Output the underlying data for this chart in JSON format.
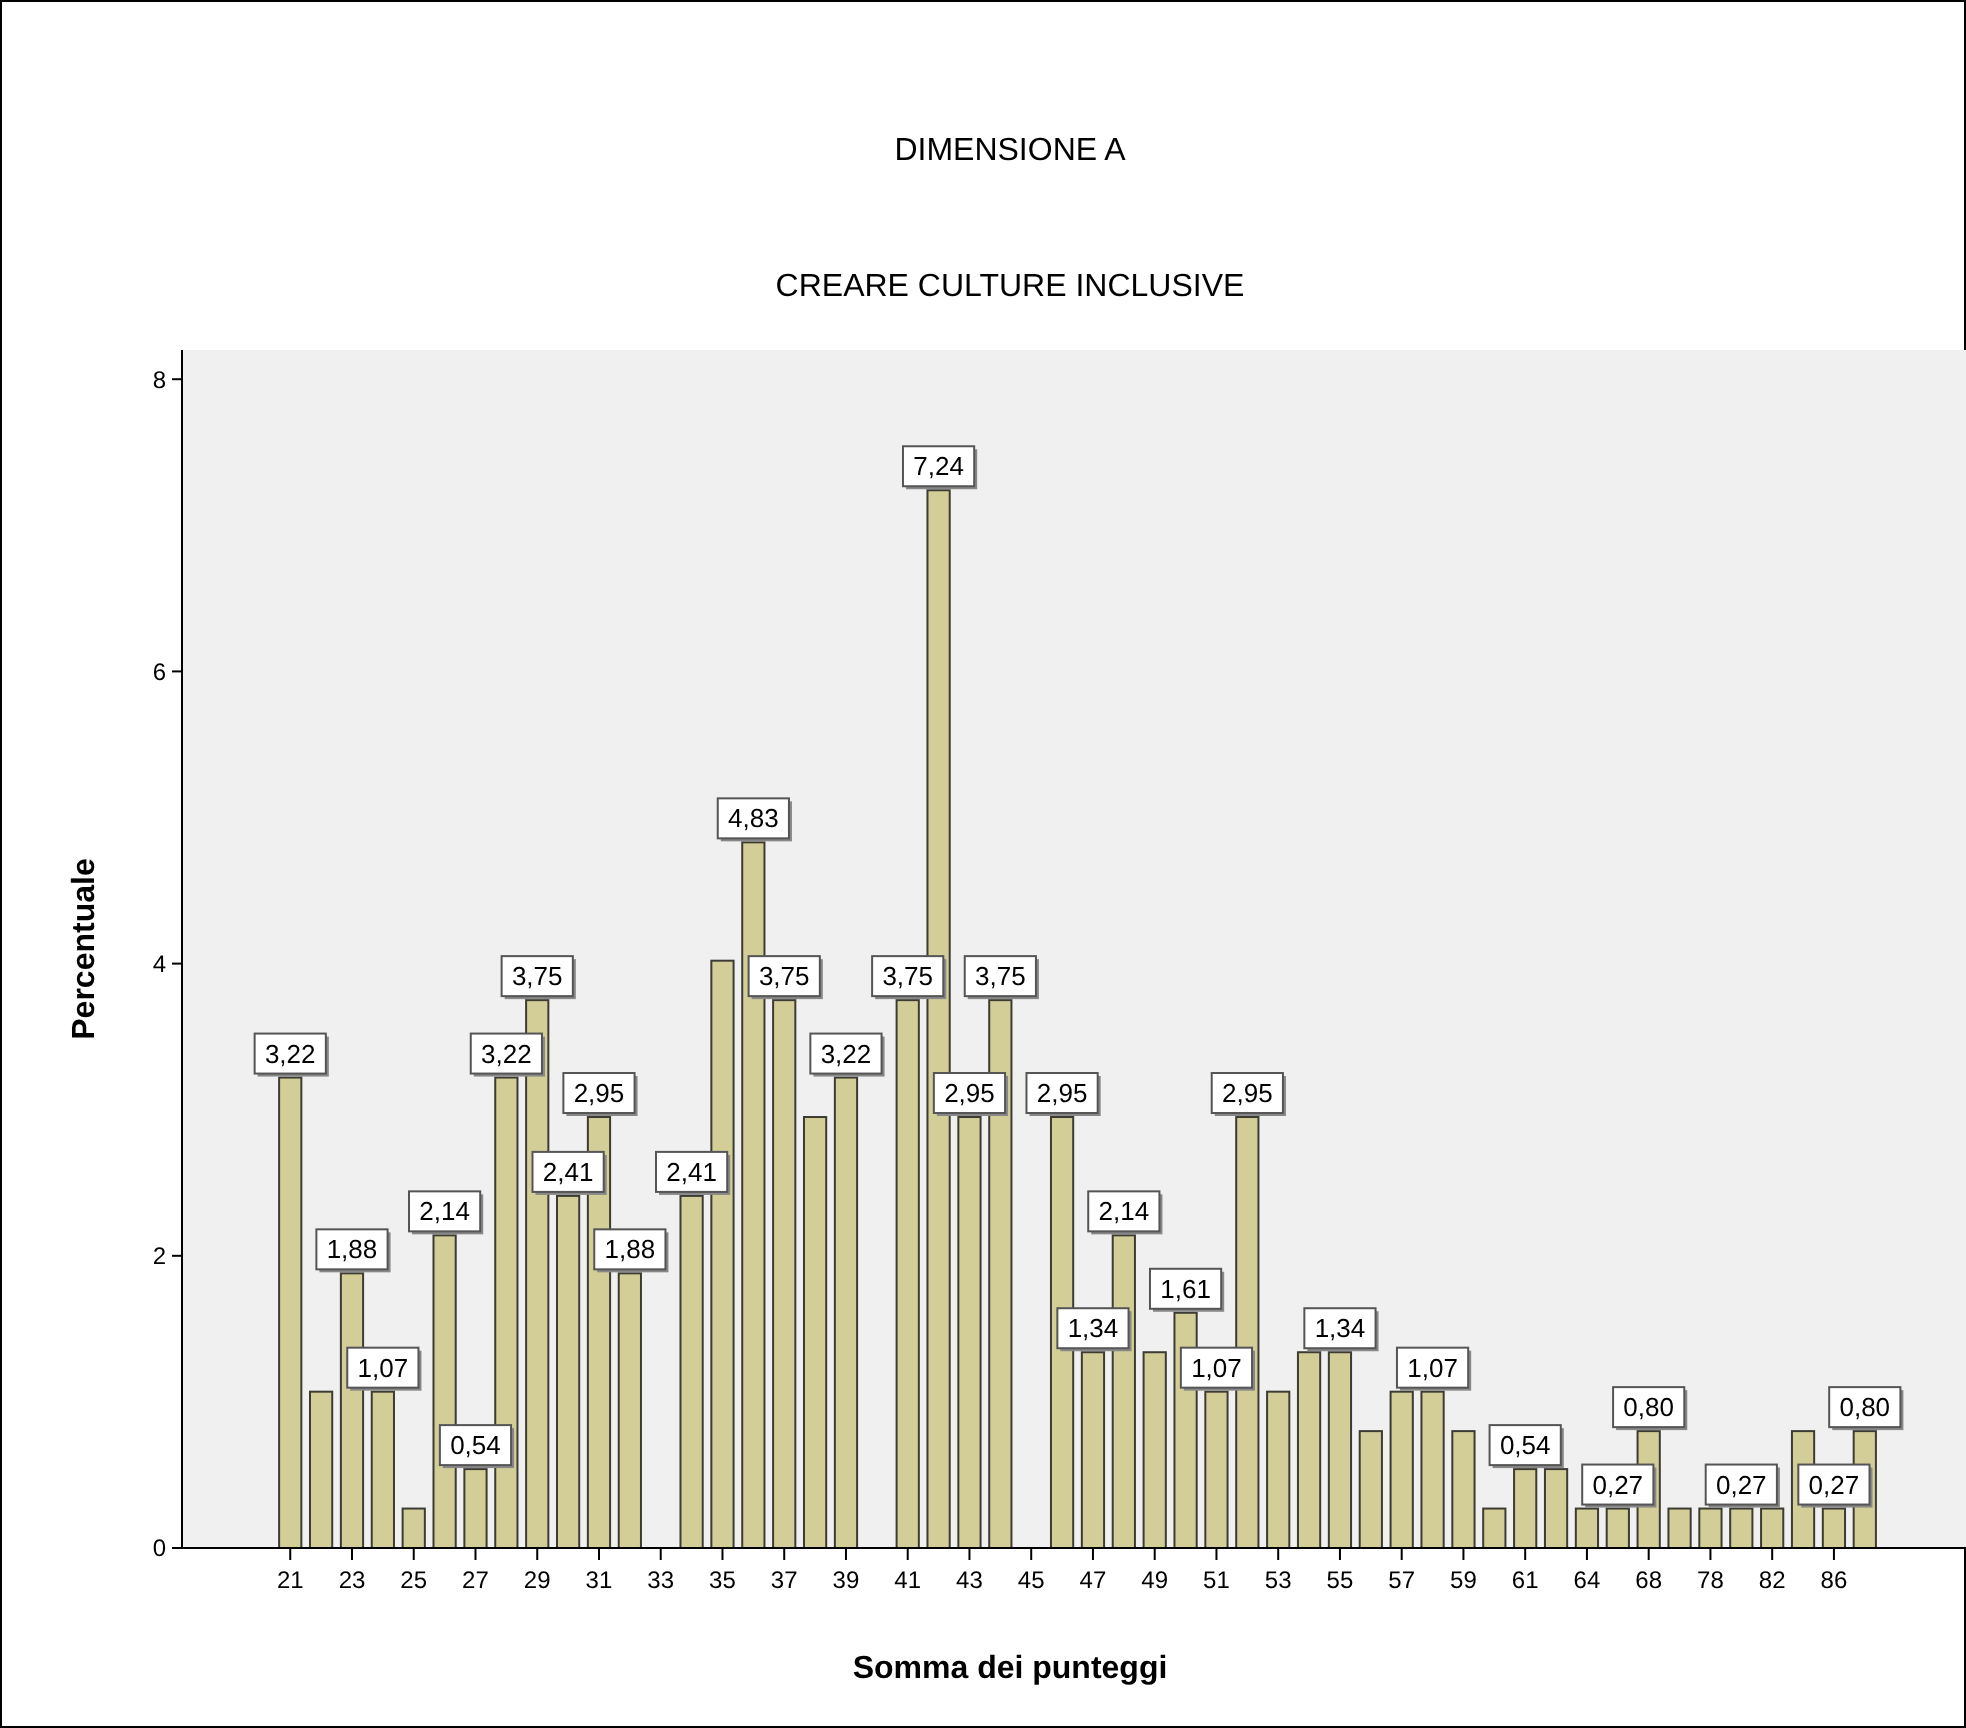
{
  "chart_data": {
    "type": "bar",
    "title": "DIMENSIONE  A",
    "subtitle": "CREARE CULTURE INCLUSIVE",
    "xlabel": "Somma dei punteggi",
    "ylabel": "Percentuale",
    "categories": [
      "21",
      null,
      "23",
      null,
      "25",
      null,
      "27",
      null,
      "29",
      null,
      "31",
      null,
      "33",
      null,
      "35",
      null,
      "37",
      null,
      "39",
      null,
      "41",
      null,
      "43",
      null,
      "45",
      null,
      "47",
      null,
      "49",
      null,
      "51",
      null,
      "53",
      null,
      "55",
      null,
      "57",
      null,
      "59",
      null,
      "61",
      null,
      "64",
      null,
      "68",
      null,
      "78",
      null,
      "82",
      null,
      "86",
      null
    ],
    "values": [
      3.22,
      1.07,
      1.88,
      1.07,
      0.27,
      2.14,
      0.54,
      3.22,
      3.75,
      2.41,
      2.95,
      1.88,
      null,
      2.41,
      4.02,
      4.83,
      3.75,
      2.95,
      3.22,
      null,
      3.75,
      7.24,
      2.95,
      3.75,
      null,
      2.95,
      1.34,
      2.14,
      1.34,
      1.61,
      1.07,
      2.95,
      1.07,
      1.34,
      1.34,
      0.8,
      1.07,
      1.07,
      0.8,
      0.27,
      0.54,
      0.54,
      0.27,
      0.27,
      0.8,
      0.27,
      0.27,
      0.27,
      0.27,
      0.8,
      0.27,
      0.8
    ],
    "value_labels": [
      "3,22",
      null,
      "1,88",
      "1,07",
      null,
      "2,14",
      "0,54",
      "3,22",
      "3,75",
      "2,41",
      "2,95",
      "1,88",
      null,
      "2,41",
      null,
      "4,83",
      "3,75",
      null,
      "3,22",
      null,
      "3,75",
      "7,24",
      "2,95",
      "3,75",
      null,
      "2,95",
      "1,34",
      "2,14",
      null,
      "1,61",
      "1,07",
      "2,95",
      null,
      null,
      "1,34",
      null,
      null,
      "1,07",
      null,
      null,
      "0,54",
      null,
      null,
      "0,27",
      "0,80",
      null,
      null,
      "0,27",
      null,
      null,
      "0,27",
      "0,80"
    ],
    "color": "#d3ce98",
    "ylim": [
      0,
      8.2
    ],
    "yticks": [
      0,
      2,
      4,
      6,
      8
    ],
    "grid": false
  }
}
